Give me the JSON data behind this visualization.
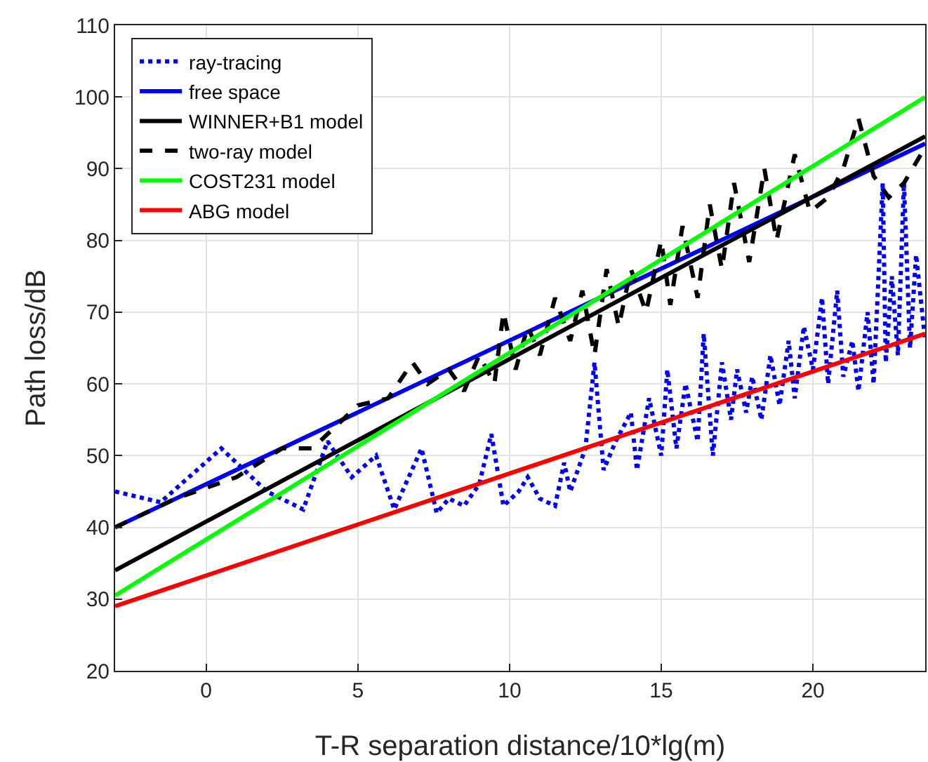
{
  "chart_data": {
    "type": "line",
    "xlabel": "T-R separation distance/10*lg(m)",
    "ylabel": "Path loss/dB",
    "xlim": [
      -3,
      23.7
    ],
    "xticks": [
      0,
      5,
      10,
      15,
      20
    ],
    "ylim": [
      20,
      110
    ],
    "yticks": [
      20,
      30,
      40,
      50,
      60,
      70,
      80,
      90,
      100,
      110
    ],
    "grid": true,
    "legend": "top left",
    "marker": "none",
    "series": [
      {
        "name": "ray-tracing",
        "color": "#0000ff",
        "line_style": "dotted",
        "x": [
          -3,
          -1.5,
          0.5,
          2,
          3.2,
          4,
          4.8,
          5.6,
          6.2,
          7.1,
          7.6,
          8,
          8.5,
          9,
          9.4,
          9.8,
          10.3,
          10.6,
          11,
          11.5,
          11.8,
          12,
          12.5,
          12.8,
          13.1,
          13.5,
          14,
          14.2,
          14.6,
          15,
          15.2,
          15.5,
          15.8,
          16.2,
          16.4,
          16.7,
          17,
          17.3,
          17.5,
          17.8,
          18,
          18.3,
          18.6,
          18.9,
          19.2,
          19.4,
          19.7,
          20,
          20.3,
          20.5,
          20.8,
          21,
          21.3,
          21.5,
          21.8,
          22,
          22.3,
          22.4,
          22.6,
          22.8,
          23,
          23.2,
          23.4,
          23.7
        ],
        "values": [
          45,
          43.5,
          51,
          45,
          42.5,
          52,
          47,
          50,
          42.5,
          51,
          42,
          44,
          43,
          46,
          53,
          43,
          45,
          47,
          44,
          43,
          49,
          45,
          51,
          63,
          48,
          52,
          56,
          48,
          58,
          50,
          62,
          51,
          60,
          52,
          67,
          50,
          63,
          55,
          62,
          56,
          61,
          55,
          64,
          57,
          66,
          58,
          68,
          62,
          72,
          60,
          73,
          61,
          66,
          59,
          70,
          60,
          88,
          63,
          75,
          64,
          88,
          65,
          78,
          66
        ]
      },
      {
        "name": "free space",
        "color": "#0000ff",
        "line_style": "solid",
        "x": [
          -3,
          23.7
        ],
        "values": [
          40,
          93.5
        ]
      },
      {
        "name": "WINNER+B1 model",
        "color": "#000000",
        "line_style": "solid",
        "x": [
          -3,
          23.7
        ],
        "values": [
          34,
          94.5
        ]
      },
      {
        "name": "two-ray model",
        "color": "#000000",
        "line_style": "dashed",
        "x": [
          -3,
          -1,
          1,
          2.5,
          3.5,
          4.5,
          5,
          6,
          6.8,
          7.3,
          8,
          8.5,
          9,
          9.5,
          9.8,
          10.2,
          10.6,
          11,
          11.5,
          12,
          12.4,
          12.8,
          13.2,
          13.6,
          14,
          14.5,
          15,
          15.3,
          15.7,
          16.2,
          16.6,
          17,
          17.4,
          17.9,
          18.4,
          18.8,
          19.4,
          19.9,
          20.5,
          21,
          21.5,
          22,
          22.5,
          23,
          23.7
        ],
        "values": [
          40,
          44,
          47,
          51,
          51,
          55,
          57,
          58,
          63,
          60,
          62,
          59,
          64,
          60,
          70,
          62,
          68,
          64,
          72,
          66,
          73,
          64,
          76,
          68,
          76,
          70,
          80,
          71,
          82,
          72,
          85,
          76,
          88,
          77,
          90,
          80,
          92,
          84,
          86,
          90,
          97,
          89,
          86,
          88,
          93
        ]
      },
      {
        "name": "COST231 model",
        "color": "#00ff00",
        "line_style": "solid",
        "x": [
          -3,
          23.7
        ],
        "values": [
          30.5,
          100
        ]
      },
      {
        "name": "ABG model",
        "color": "#ff0000",
        "line_style": "solid",
        "x": [
          -3,
          23.7
        ],
        "values": [
          29,
          67
        ]
      }
    ]
  }
}
